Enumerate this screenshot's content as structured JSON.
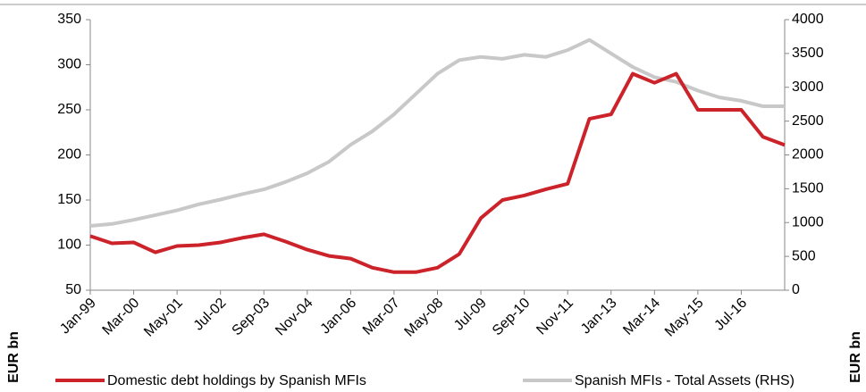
{
  "chart_data": {
    "type": "line",
    "y_label": "EUR bn",
    "y2_label": "EUR bn",
    "categories": [
      "Jan-99",
      null,
      "Mar-00",
      null,
      "May-01",
      null,
      "Jul-02",
      null,
      "Sep-03",
      null,
      "Nov-04",
      null,
      "Jan-06",
      null,
      "Mar-07",
      null,
      "May-08",
      null,
      "Jul-09",
      null,
      "Sep-10",
      null,
      "Nov-11",
      null,
      "Jan-13",
      null,
      "Mar-14",
      null,
      "May-15",
      null,
      "Jul-16",
      null,
      null
    ],
    "series": [
      {
        "name": "Domestic debt holdings by Spanish MFIs",
        "color": "#cc2229",
        "values": [
          110,
          102,
          103,
          92,
          99,
          100,
          103,
          108,
          112,
          104,
          95,
          88,
          85,
          75,
          70,
          70,
          75,
          90,
          130,
          150,
          155,
          162,
          168,
          240,
          245,
          290,
          280,
          290,
          250,
          250,
          250,
          220,
          211
        ]
      },
      {
        "name": "Spanish MFIs - Total Assets (RHS)",
        "color": "#c8c8c8",
        "axis": "y2",
        "values": [
          950,
          980,
          1040,
          1110,
          1180,
          1270,
          1340,
          1420,
          1490,
          1600,
          1730,
          1900,
          2150,
          2350,
          2600,
          2900,
          3200,
          3400,
          3450,
          3420,
          3480,
          3450,
          3550,
          3700,
          3500,
          3300,
          3150,
          3080,
          2950,
          2850,
          2800,
          2720,
          2720
        ]
      }
    ],
    "ylim": [
      50,
      350
    ],
    "yticks": [
      50,
      100,
      150,
      200,
      250,
      300,
      350
    ],
    "y2lim": [
      0,
      4000
    ],
    "y2ticks": [
      0,
      500,
      1000,
      1500,
      2000,
      2500,
      3000,
      3500,
      4000
    ],
    "grid": false,
    "legend": "bottom"
  }
}
